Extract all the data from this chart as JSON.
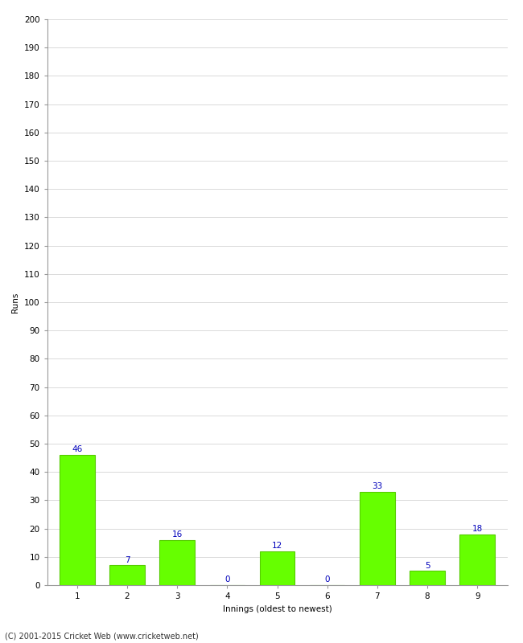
{
  "xlabel": "Innings (oldest to newest)",
  "ylabel": "Runs",
  "categories": [
    "1",
    "2",
    "3",
    "4",
    "5",
    "6",
    "7",
    "8",
    "9"
  ],
  "values": [
    46,
    7,
    16,
    0,
    12,
    0,
    33,
    5,
    18
  ],
  "bar_color": "#66ff00",
  "bar_edge_color": "#55cc00",
  "label_color": "#0000bb",
  "ylim": [
    0,
    200
  ],
  "ytick_step": 10,
  "background_color": "#ffffff",
  "footer_text": "(C) 2001-2015 Cricket Web (www.cricketweb.net)",
  "label_fontsize": 7.5,
  "axis_label_fontsize": 7.5,
  "tick_fontsize": 7.5,
  "ylabel_fontsize": 7.5,
  "grid_color": "#cccccc",
  "spine_color": "#999999"
}
